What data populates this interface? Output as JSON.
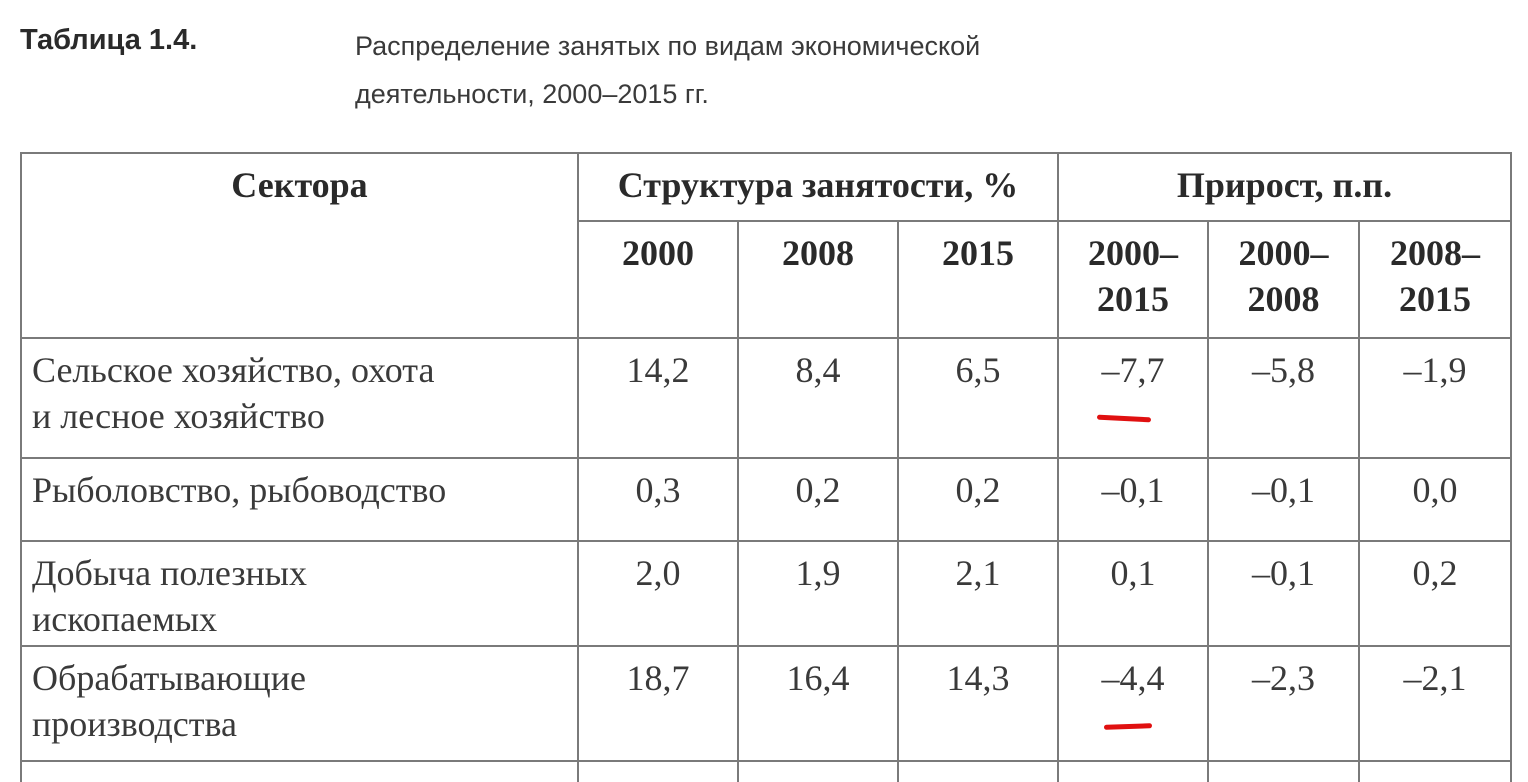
{
  "header": {
    "label": "Таблица 1.4.",
    "caption": "Распределение занятых по видам экономической\nдеятельности, 2000–2015 гг."
  },
  "table": {
    "columns": {
      "sector": "Сектора",
      "structure": "Структура занятости, %",
      "growth": "Прирост, п.п.",
      "years": [
        "2000",
        "2008",
        "2015",
        "2000–\n2015",
        "2000–\n2008",
        "2008–\n2015"
      ]
    },
    "rows": [
      [
        "Сельское хозяйство, охота\nи лесное хозяйство",
        "14,2",
        "8,4",
        "6,5",
        "–7,7",
        "–5,8",
        "–1,9"
      ],
      [
        "Рыболовство, рыбоводство",
        "0,3",
        "0,2",
        "0,2",
        "–0,1",
        "–0,1",
        "0,0"
      ],
      [
        "Добыча полезных\nископаемых",
        "2,0",
        "1,9",
        "2,1",
        "0,1",
        "–0,1",
        "0,2"
      ],
      [
        "Обрабатывающие\nпроизводства",
        "18,7",
        "16,4",
        "14,3",
        "–4,4",
        "–2,3",
        "–2,1"
      ]
    ]
  }
}
